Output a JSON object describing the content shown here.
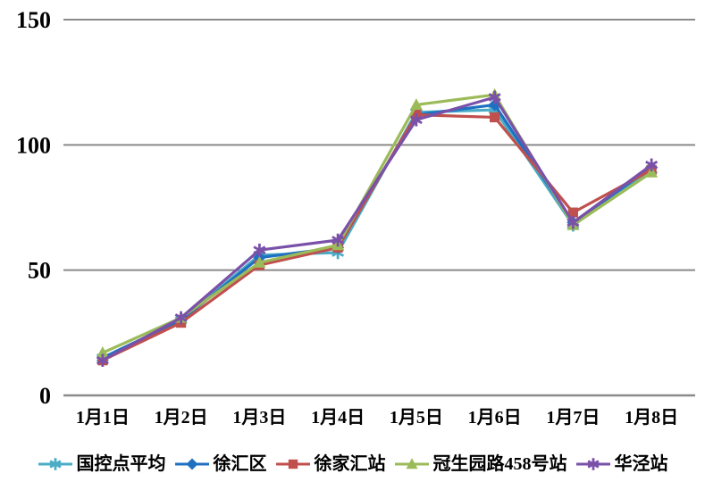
{
  "chart_data": {
    "type": "line",
    "title": "",
    "xlabel": "",
    "ylabel": "",
    "categories": [
      "1月1日",
      "1月2日",
      "1月3日",
      "1月4日",
      "1月5日",
      "1月6日",
      "1月7日",
      "1月8日"
    ],
    "series": [
      {
        "name": "国控点平均",
        "color": "#4BACC6",
        "marker": "asterisk",
        "values": [
          15,
          30,
          56,
          57,
          113,
          114,
          68,
          90
        ]
      },
      {
        "name": "徐汇区",
        "color": "#1F70C1",
        "marker": "diamond",
        "values": [
          15,
          30,
          55,
          59,
          112,
          116,
          69,
          91
        ]
      },
      {
        "name": "徐家汇站",
        "color": "#C0504D",
        "marker": "square",
        "values": [
          14,
          29,
          52,
          59,
          112,
          111,
          73,
          90
        ]
      },
      {
        "name": "冠生园路458号站",
        "color": "#9BBB59",
        "marker": "triangle",
        "values": [
          17,
          31,
          53,
          60,
          116,
          120,
          68,
          89
        ]
      },
      {
        "name": "华泾站",
        "color": "#7A51A9",
        "marker": "asterisk",
        "values": [
          14,
          31,
          58,
          62,
          110,
          119,
          69,
          92
        ]
      }
    ],
    "ylim": [
      0,
      150
    ],
    "yticks": [
      0,
      50,
      100,
      150
    ],
    "grid": true,
    "gridline_color": "#8A8A8A",
    "axis_text_color": "#000000",
    "legend_position": "bottom",
    "background": "#FFFFFF"
  }
}
